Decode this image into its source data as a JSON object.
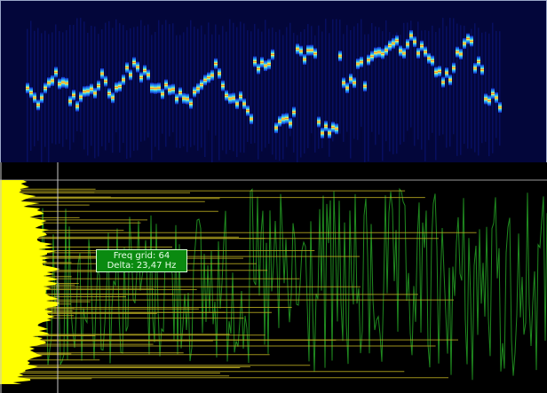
{
  "tooltip": {
    "freq_grid_label": "Freq grid: 64",
    "delta_label": "Delta: 23,47 Hz"
  },
  "colors": {
    "waterfall_background": "#03063a",
    "spectrum_background": "#000000",
    "spectrum_trace": "#1f8a1f",
    "peak_lines": "#b8a820",
    "bin_histogram": "#ffff00",
    "cursor": "#c8c8c8",
    "tooltip_background": "#0a8a10"
  },
  "view": {
    "mode": "waterfall-with-spectrum"
  }
}
